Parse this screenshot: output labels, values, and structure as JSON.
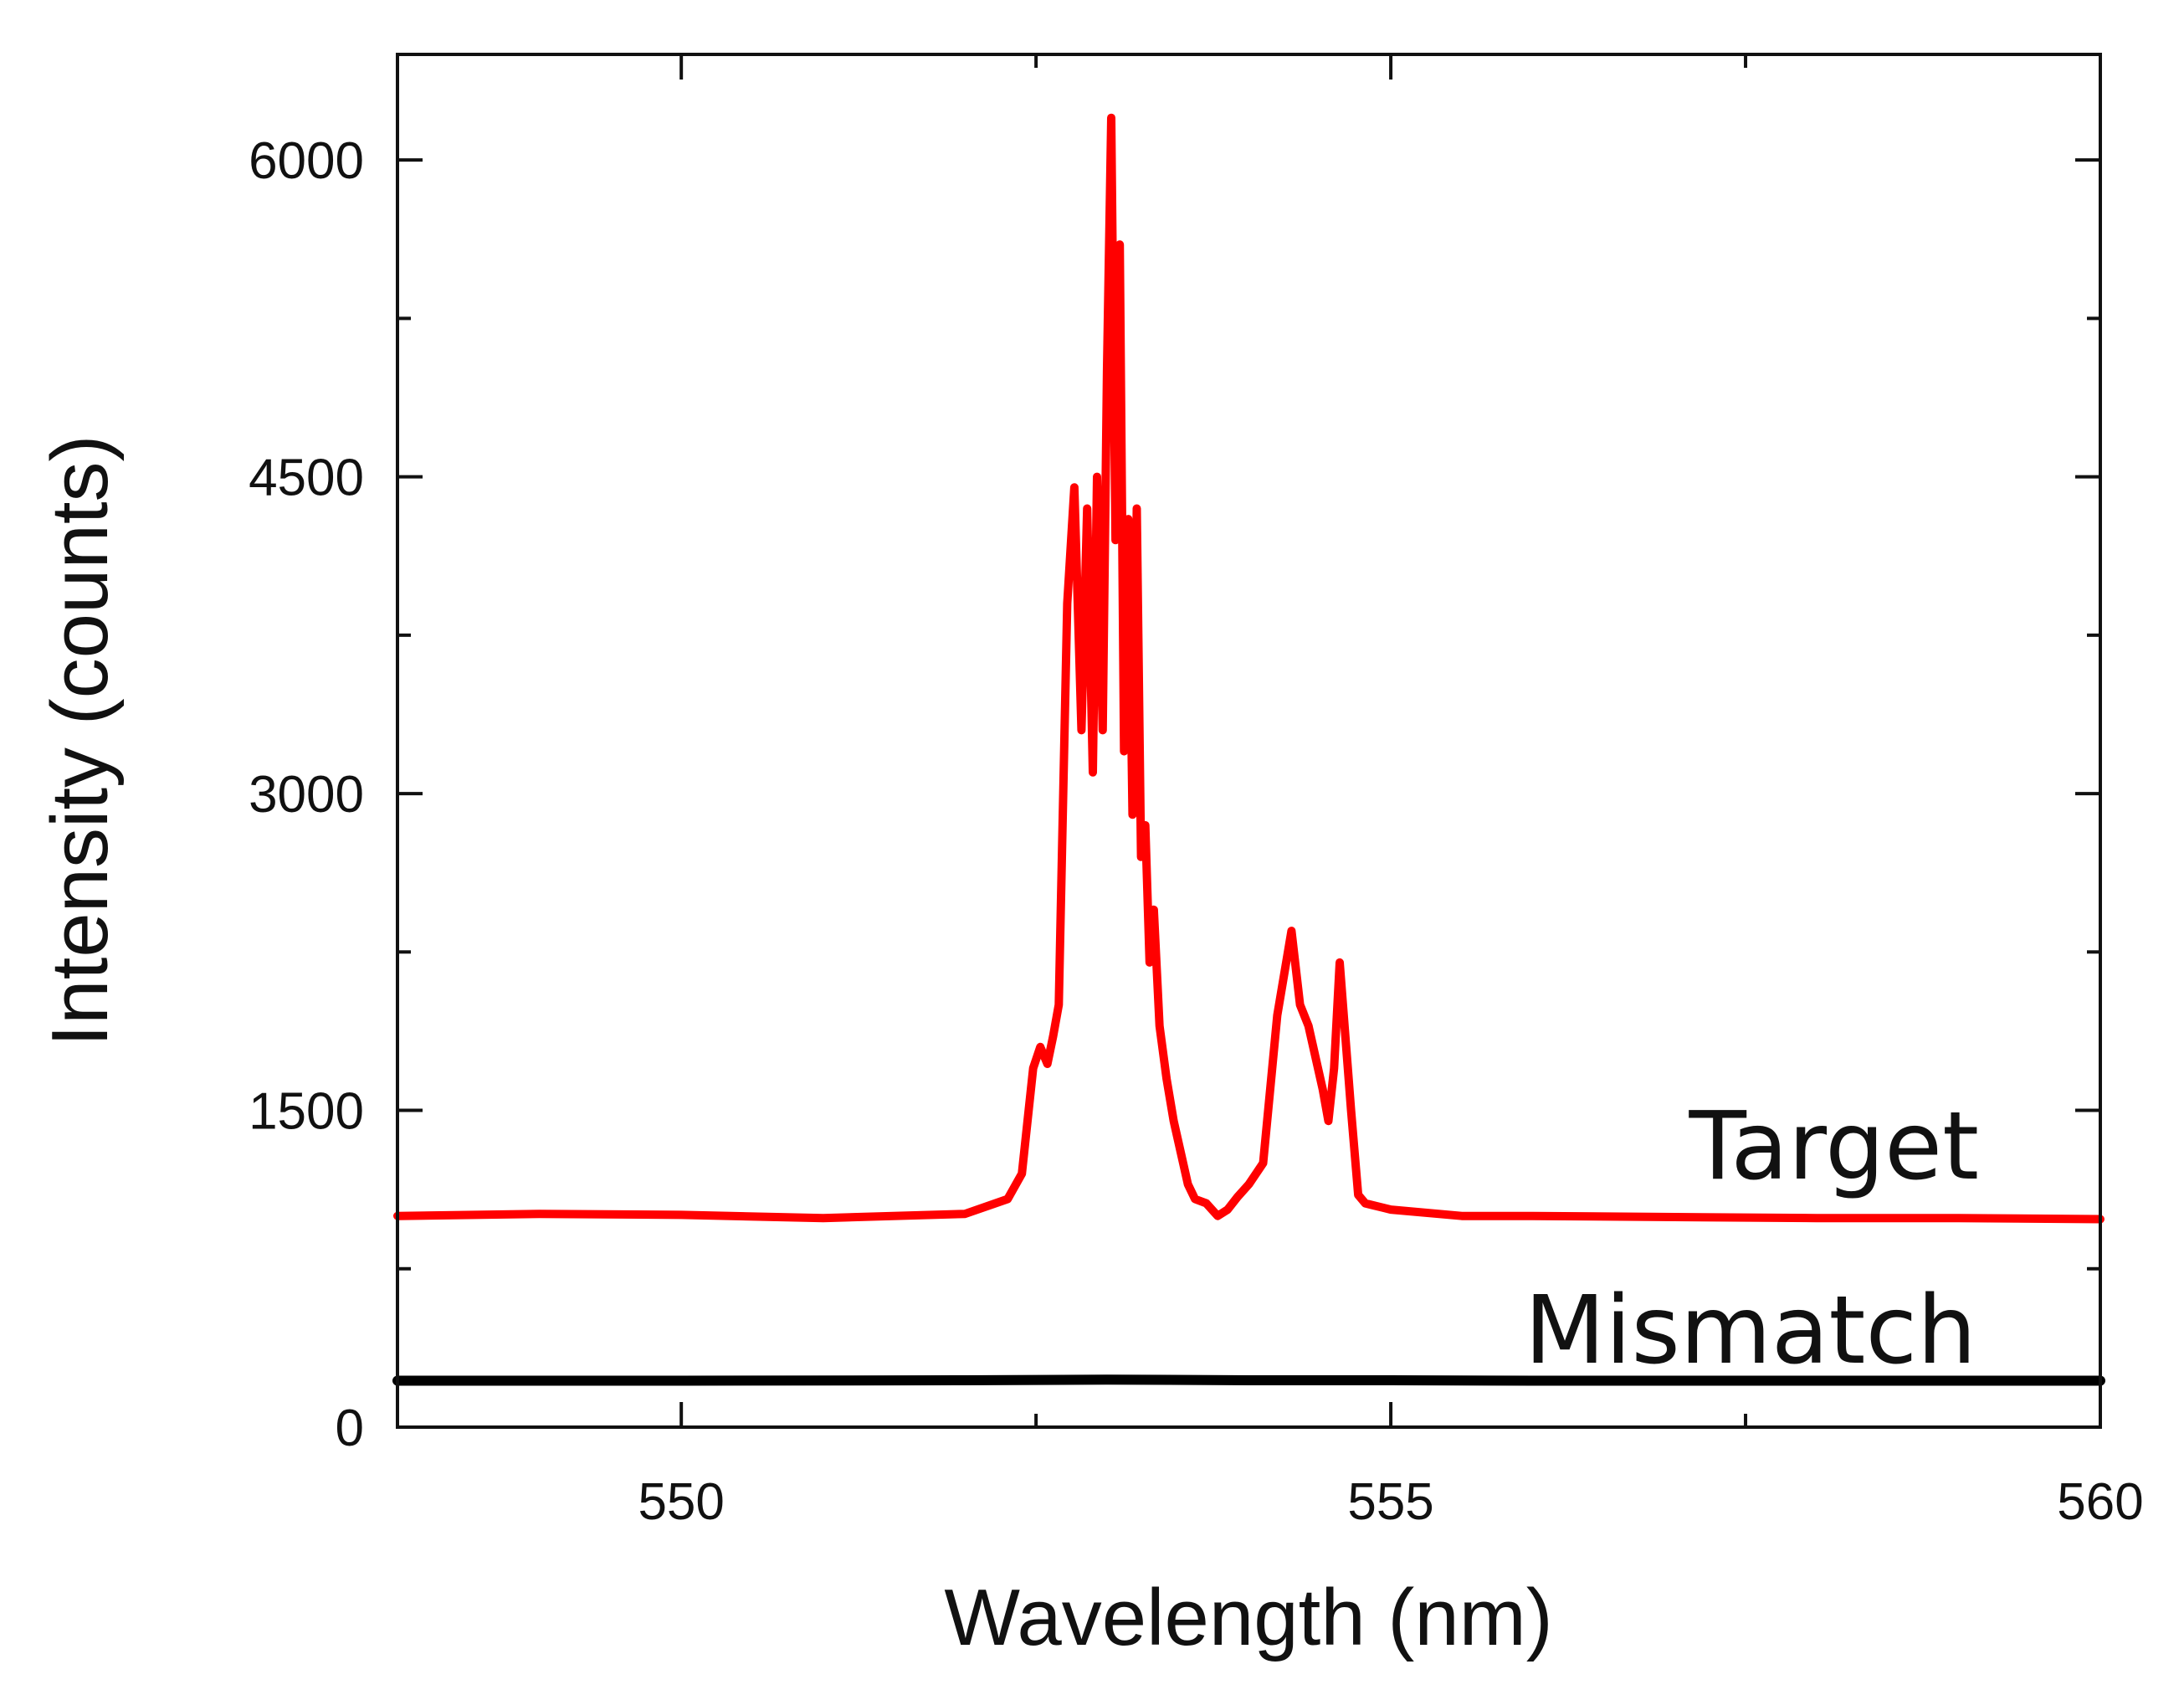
{
  "chart_data": {
    "type": "line",
    "title": "",
    "xlabel": "Wavelength (nm)",
    "ylabel": "Intensity (counts)",
    "xlim": [
      548,
      560
    ],
    "ylim": [
      0,
      6500
    ],
    "x_ticks": [
      550,
      555,
      560
    ],
    "x_tick_labels": [
      "550",
      "555",
      "560"
    ],
    "x_minor_ticks": [
      552.5,
      557.5
    ],
    "y_ticks": [
      0,
      1500,
      3000,
      4500,
      6000
    ],
    "y_tick_labels": [
      "0",
      "1500",
      "3000",
      "4500",
      "6000"
    ],
    "y_minor_ticks": [
      750,
      2250,
      3750,
      5250
    ],
    "grid": false,
    "legend": "none",
    "series": [
      {
        "name": "Target",
        "color": "#ff0000",
        "x": [
          548.0,
          549.0,
          550.0,
          551.0,
          552.0,
          552.3,
          552.4,
          552.48,
          552.53,
          552.58,
          552.62,
          552.66,
          552.72,
          552.77,
          552.82,
          552.86,
          552.9,
          552.93,
          552.97,
          553.0,
          553.03,
          553.06,
          553.09,
          553.12,
          553.15,
          553.18,
          553.21,
          553.24,
          553.27,
          553.3,
          553.33,
          553.37,
          553.42,
          553.47,
          553.52,
          553.57,
          553.62,
          553.7,
          553.78,
          553.85,
          553.92,
          554.0,
          554.1,
          554.2,
          554.3,
          554.36,
          554.42,
          554.47,
          554.52,
          554.56,
          554.6,
          554.64,
          554.68,
          554.72,
          554.77,
          554.82,
          554.88,
          555.0,
          555.5,
          556.0,
          557.0,
          558.0,
          559.0,
          560.0
        ],
        "y": [
          1000,
          1010,
          1005,
          990,
          1010,
          1080,
          1200,
          1700,
          1800,
          1720,
          1850,
          2000,
          3900,
          4450,
          3300,
          4350,
          3100,
          4500,
          3300,
          5000,
          6200,
          4200,
          5600,
          3200,
          4300,
          2900,
          4350,
          2700,
          2850,
          2200,
          2450,
          1900,
          1650,
          1450,
          1300,
          1150,
          1080,
          1060,
          1000,
          1030,
          1090,
          1150,
          1250,
          1950,
          2350,
          2000,
          1900,
          1750,
          1600,
          1450,
          1700,
          2200,
          1850,
          1500,
          1100,
          1060,
          1050,
          1030,
          1000,
          1000,
          995,
          990,
          990,
          985
        ]
      },
      {
        "name": "Mismatch",
        "color": "#000000",
        "x": [
          548.0,
          550.0,
          552.0,
          553.0,
          554.0,
          555.0,
          556.0,
          558.0,
          560.0
        ],
        "y": [
          220,
          220,
          222,
          225,
          222,
          222,
          220,
          220,
          220
        ]
      }
    ],
    "annotations": [
      {
        "text": "Target",
        "series": "Target"
      },
      {
        "text": "Mismatch",
        "series": "Mismatch"
      }
    ]
  }
}
